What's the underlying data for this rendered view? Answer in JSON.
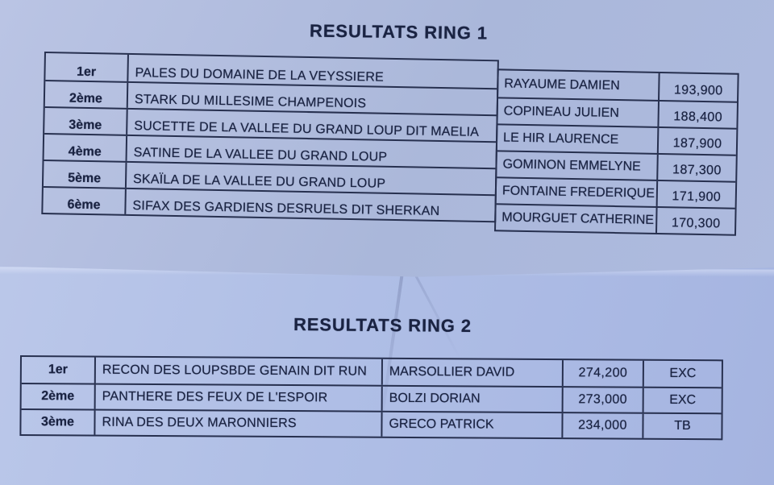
{
  "colors": {
    "ink": "#1a2342",
    "line": "#27304f",
    "paper_top": "#adbadc",
    "paper_bottom": "#b3c1e7"
  },
  "ring1": {
    "title": "RESULTATS RING 1",
    "rows": [
      {
        "rank": "1er",
        "dog": "PALES DU DOMAINE DE LA VEYSSIERE",
        "handler": "RAYAUME DAMIEN",
        "score": "193,900"
      },
      {
        "rank": "2ème",
        "dog": "STARK DU MILLESIME CHAMPENOIS",
        "handler": "COPINEAU JULIEN",
        "score": "188,400"
      },
      {
        "rank": "3ème",
        "dog": "SUCETTE DE LA VALLEE DU GRAND LOUP DIT MAELIA",
        "handler": "LE HIR LAURENCE",
        "score": "187,900"
      },
      {
        "rank": "4ème",
        "dog": "SATINE DE LA VALLEE DU GRAND LOUP",
        "handler": "GOMINON EMMELYNE",
        "score": "187,300"
      },
      {
        "rank": "5ème",
        "dog": "SKAÏLA DE LA VALLEE DU GRAND LOUP",
        "handler": "FONTAINE FREDERIQUE",
        "score": "171,900"
      },
      {
        "rank": "6ème",
        "dog": "SIFAX DES GARDIENS DESRUELS DIT SHERKAN",
        "handler": "MOURGUET CATHERINE",
        "score": "170,300"
      }
    ]
  },
  "ring2": {
    "title": "RESULTATS RING 2",
    "rows": [
      {
        "rank": "1er",
        "dog": "RECON DES LOUPSBDE GENAIN DIT RUN",
        "handler": "MARSOLLIER DAVID",
        "score": "274,200",
        "grade": "EXC"
      },
      {
        "rank": "2ème",
        "dog": "PANTHERE DES FEUX DE L'ESPOIR",
        "handler": "BOLZI DORIAN",
        "score": "273,000",
        "grade": "EXC"
      },
      {
        "rank": "3ème",
        "dog": "RINA DES DEUX MARONNIERS",
        "handler": "GRECO PATRICK",
        "score": "234,000",
        "grade": "TB"
      }
    ]
  }
}
